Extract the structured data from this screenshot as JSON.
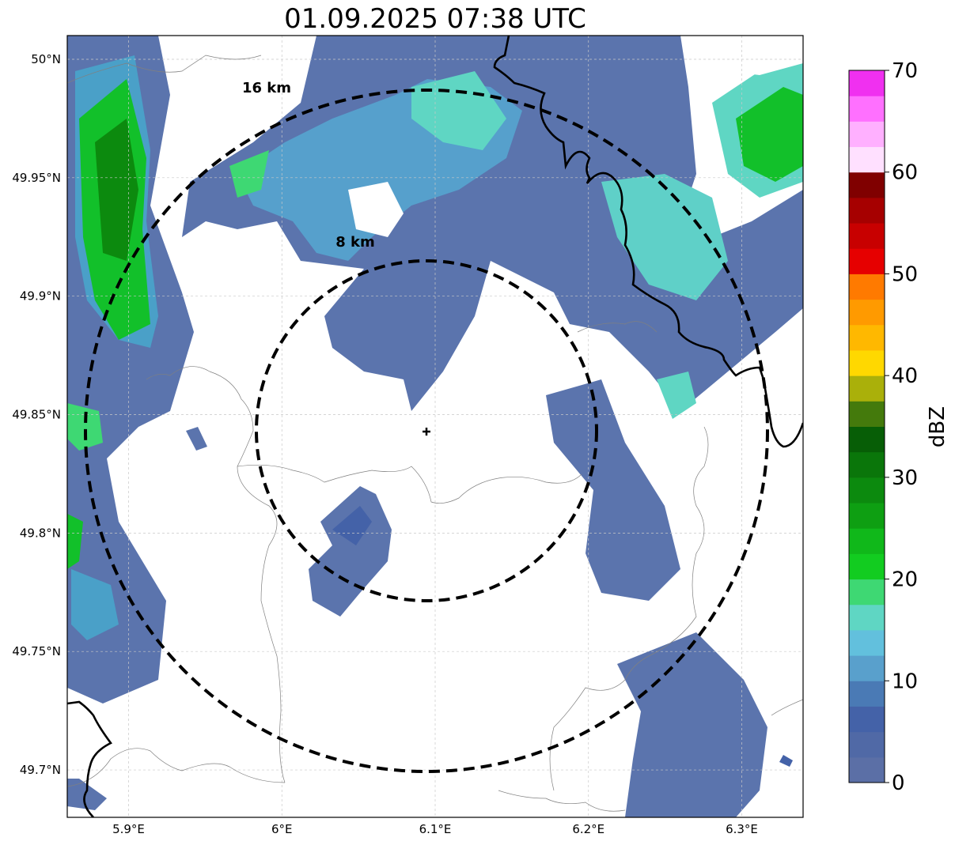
{
  "title": "01.09.2025 07:38 UTC",
  "radar_site": {
    "lon": 6.095,
    "lat": 49.843
  },
  "map": {
    "lon_range": [
      5.86,
      6.34
    ],
    "lat_range": [
      49.68,
      50.01
    ],
    "lat_ticks": [
      {
        "value": 50.0,
        "label": "50°N"
      },
      {
        "value": 49.95,
        "label": "49.95°N"
      },
      {
        "value": 49.9,
        "label": "49.9°N"
      },
      {
        "value": 49.85,
        "label": "49.85°N"
      },
      {
        "value": 49.8,
        "label": "49.8°N"
      },
      {
        "value": 49.75,
        "label": "49.75°N"
      },
      {
        "value": 49.7,
        "label": "49.7°N"
      }
    ],
    "lon_ticks": [
      {
        "value": 5.9,
        "label": "5.9°E"
      },
      {
        "value": 6.0,
        "label": "6°E"
      },
      {
        "value": 6.1,
        "label": "6.1°E"
      },
      {
        "value": 6.2,
        "label": "6.2°E"
      },
      {
        "value": 6.3,
        "label": "6.3°E"
      }
    ]
  },
  "range_rings": [
    {
      "radius_km": 8,
      "label": "8 km"
    },
    {
      "radius_km": 16,
      "label": "16 km"
    }
  ],
  "colorbar": {
    "label": "dBZ",
    "min": 0,
    "max": 70,
    "ticks": [
      "0",
      "10",
      "20",
      "30",
      "40",
      "50",
      "60",
      "70"
    ],
    "colors": [
      "#5b6fa6",
      "#5069a6",
      "#4462a8",
      "#4a7ab5",
      "#59a0cc",
      "#62c0dd",
      "#5fd6c3",
      "#3ed873",
      "#12cc20",
      "#10b81a",
      "#0e9f12",
      "#0c8a0e",
      "#0a760a",
      "#075e06",
      "#447a0c",
      "#aab00a",
      "#ffd800",
      "#ffb800",
      "#ff9a00",
      "#ff7a00",
      "#e60000",
      "#c80000",
      "#a60000",
      "#800000",
      "#ffe0ff",
      "#ffb0ff",
      "#ff70ff",
      "#f030f0"
    ]
  },
  "echoes": [
    {
      "lon": 5.9,
      "lat": 49.97,
      "dbz": 20
    },
    {
      "lon": 6.15,
      "lat": 49.96,
      "dbz": 12
    },
    {
      "lon": 6.31,
      "lat": 49.95,
      "dbz": 22
    },
    {
      "lon": 6.06,
      "lat": 49.81,
      "dbz": 6
    },
    {
      "lon": 6.27,
      "lat": 49.71,
      "dbz": 5
    }
  ]
}
